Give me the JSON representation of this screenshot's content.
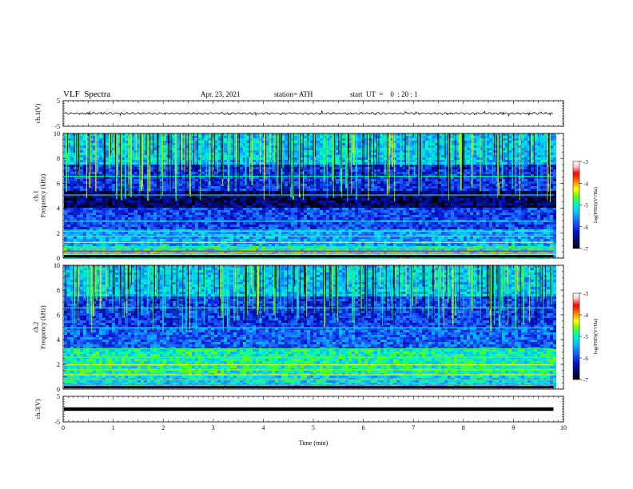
{
  "header": {
    "title": "VLF  Spectra",
    "date": "Apr. 23, 2021",
    "station": "station= ATH",
    "start": "start  UT  =    0  : 20 : 1"
  },
  "chart_data": [
    {
      "type": "line",
      "panel": "ch1-waveform",
      "ylabel": "ch.1(V)",
      "ylim": [
        -5,
        5
      ],
      "yticks": [
        "5",
        "-5"
      ],
      "xlim": [
        0,
        10
      ],
      "trace_end_min": 9.8,
      "baseline_v": 0
    },
    {
      "type": "heatmap",
      "panel": "ch1-spectrogram",
      "ylabel": "ch.1\nFrequency (kHz)",
      "ylim": [
        0,
        10
      ],
      "yticks": [
        "0",
        "2",
        "4",
        "6",
        "8",
        "10"
      ],
      "xlim": [
        0,
        10
      ],
      "data_end_min": 9.8,
      "colorbar": {
        "label": "log(PSD)(V²/Hz)",
        "range": [
          -7,
          -3
        ],
        "ticks": [
          "-3",
          "-4",
          "-5",
          "-6",
          "-7"
        ]
      }
    },
    {
      "type": "heatmap",
      "panel": "ch2-spectrogram",
      "ylabel": "ch.2\nFrequency (kHz)",
      "ylim": [
        0,
        10
      ],
      "yticks": [
        "0",
        "2",
        "4",
        "6",
        "8",
        "10"
      ],
      "xlim": [
        0,
        10
      ],
      "data_end_min": 9.8,
      "colorbar": {
        "label": "log(PSD)(V²/Hz)",
        "range": [
          -7,
          -3
        ],
        "ticks": [
          "-3",
          "-4",
          "-5",
          "-6",
          "-7"
        ]
      }
    },
    {
      "type": "line",
      "panel": "ch3-waveform",
      "ylabel": "ch.3(V)",
      "ylim": [
        -5,
        5
      ],
      "yticks": [
        "5",
        "-5"
      ],
      "xlim": [
        0,
        10
      ],
      "trace_end_min": 9.8,
      "baseline_v": 0
    }
  ],
  "xaxis": {
    "label": "Time  (min)",
    "ticks": [
      "0",
      "1",
      "2",
      "3",
      "4",
      "5",
      "6",
      "7",
      "8",
      "9",
      "10"
    ]
  },
  "colormap": [
    "#000000",
    "#000a5a",
    "#0010c8",
    "#1e5aff",
    "#00c8ff",
    "#00ffb4",
    "#64ff00",
    "#ffff00",
    "#ff8c00",
    "#ff0000",
    "#ffc8c8",
    "#ffffff"
  ]
}
